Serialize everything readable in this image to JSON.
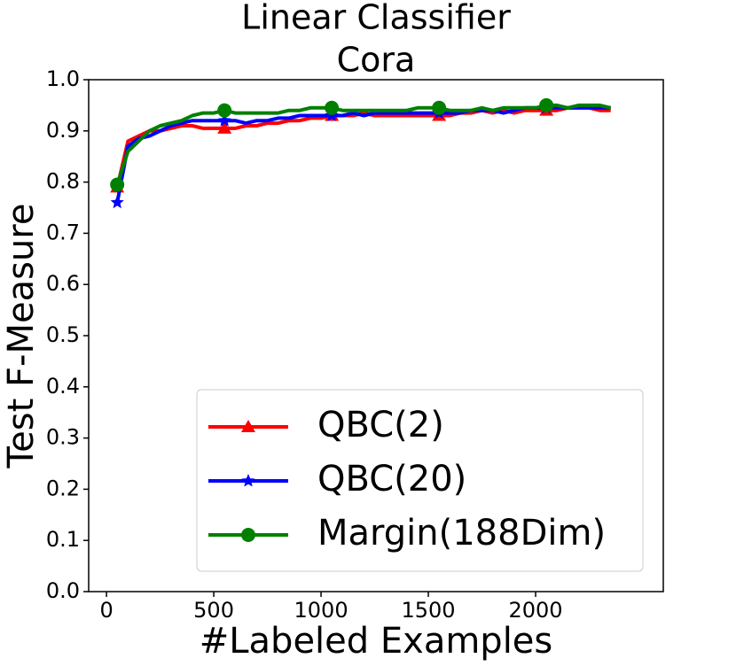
{
  "chart_data": {
    "type": "line",
    "title": [
      "Linear Classifier",
      "Cora"
    ],
    "x_label": "#Labeled Examples",
    "y_label": "Test F-Measure",
    "x": [
      50,
      100,
      150,
      200,
      250,
      300,
      350,
      400,
      450,
      500,
      550,
      600,
      650,
      700,
      750,
      800,
      850,
      900,
      950,
      1000,
      1050,
      1100,
      1150,
      1200,
      1250,
      1300,
      1350,
      1400,
      1450,
      1500,
      1550,
      1600,
      1650,
      1700,
      1750,
      1800,
      1850,
      1900,
      1950,
      2000,
      2050,
      2100,
      2150,
      2200,
      2250,
      2300,
      2350
    ],
    "series": [
      {
        "name": "QBC(2)",
        "color": "#ff0000",
        "marker": "triangle",
        "values": [
          0.79,
          0.88,
          0.89,
          0.9,
          0.9,
          0.905,
          0.91,
          0.91,
          0.905,
          0.905,
          0.905,
          0.905,
          0.91,
          0.91,
          0.915,
          0.915,
          0.92,
          0.92,
          0.925,
          0.925,
          0.93,
          0.93,
          0.93,
          0.935,
          0.93,
          0.93,
          0.93,
          0.93,
          0.93,
          0.93,
          0.93,
          0.93,
          0.935,
          0.935,
          0.94,
          0.935,
          0.94,
          0.935,
          0.94,
          0.94,
          0.94,
          0.94,
          0.945,
          0.945,
          0.945,
          0.94,
          0.94
        ]
      },
      {
        "name": "QBC(20)",
        "color": "#0000ff",
        "marker": "star",
        "values": [
          0.76,
          0.87,
          0.885,
          0.89,
          0.9,
          0.91,
          0.915,
          0.92,
          0.92,
          0.92,
          0.92,
          0.92,
          0.915,
          0.92,
          0.92,
          0.925,
          0.925,
          0.93,
          0.93,
          0.93,
          0.93,
          0.93,
          0.935,
          0.93,
          0.935,
          0.935,
          0.935,
          0.935,
          0.935,
          0.935,
          0.935,
          0.935,
          0.935,
          0.94,
          0.94,
          0.94,
          0.935,
          0.94,
          0.945,
          0.945,
          0.945,
          0.945,
          0.945,
          0.945,
          0.945,
          0.945,
          0.945
        ]
      },
      {
        "name": "Margin(188Dim)",
        "color": "#008000",
        "marker": "circle",
        "values": [
          0.795,
          0.86,
          0.88,
          0.9,
          0.91,
          0.915,
          0.92,
          0.93,
          0.935,
          0.935,
          0.94,
          0.935,
          0.935,
          0.935,
          0.935,
          0.935,
          0.94,
          0.94,
          0.945,
          0.945,
          0.945,
          0.94,
          0.94,
          0.94,
          0.94,
          0.94,
          0.94,
          0.94,
          0.945,
          0.945,
          0.945,
          0.94,
          0.94,
          0.94,
          0.945,
          0.94,
          0.945,
          0.945,
          0.945,
          0.945,
          0.95,
          0.95,
          0.945,
          0.95,
          0.95,
          0.95,
          0.945
        ]
      }
    ],
    "markevery": 10,
    "xlim": [
      -83,
      2595
    ],
    "ylim": [
      0,
      1
    ],
    "xticks": [
      0,
      500,
      1000,
      1500,
      2000
    ],
    "yticks": [
      {
        "value": 0,
        "label": "0.0"
      },
      0.1,
      0.2,
      0.3,
      0.4,
      0.5,
      0.6,
      0.7,
      0.8,
      0.9,
      {
        "value": 1,
        "label": "1.0"
      }
    ],
    "grid": false,
    "legend": "lower right"
  }
}
